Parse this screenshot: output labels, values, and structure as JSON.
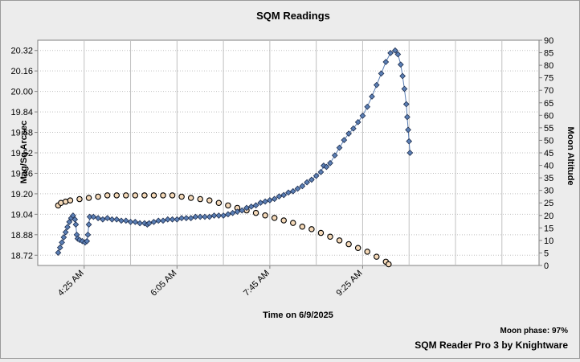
{
  "chart_data": {
    "type": "scatter",
    "title": "SQM Readings",
    "xlabel": "Time on 6/9/2025",
    "ylabel": "Mag/Sq Arcsec",
    "y2label": "Moon Altitude",
    "xlim": [
      "3:35 AM",
      "12:35 PM"
    ],
    "xticks": [
      "4:25 AM",
      "6:05 AM",
      "7:45 AM",
      "9:25 AM"
    ],
    "ylim": [
      18.64,
      20.4
    ],
    "yticks": [
      "18.72",
      "18.88",
      "19.04",
      "19.20",
      "19.36",
      "19.52",
      "19.68",
      "19.84",
      "20.00",
      "20.16",
      "20.32"
    ],
    "y2lim": [
      0,
      90
    ],
    "y2ticks": [
      "0",
      "5",
      "10",
      "15",
      "20",
      "25",
      "30",
      "35",
      "40",
      "45",
      "50",
      "55",
      "60",
      "65",
      "70",
      "75",
      "80",
      "85",
      "90"
    ],
    "grid": true,
    "series": [
      {
        "axis": "left",
        "marker": "diamond",
        "color": "#5b7fb5",
        "points": [
          [
            "3:57 AM",
            18.74
          ],
          [
            "3:59 AM",
            18.78
          ],
          [
            "4:01 AM",
            18.82
          ],
          [
            "4:03 AM",
            18.86
          ],
          [
            "4:05 AM",
            18.9
          ],
          [
            "4:07 AM",
            18.94
          ],
          [
            "4:09 AM",
            18.98
          ],
          [
            "4:11 AM",
            19.01
          ],
          [
            "4:13 AM",
            19.03
          ],
          [
            "4:15 AM",
            19.0
          ],
          [
            "4:16 AM",
            18.96
          ],
          [
            "4:17 AM",
            18.88
          ],
          [
            "4:18 AM",
            18.85
          ],
          [
            "4:20 AM",
            18.84
          ],
          [
            "4:23 AM",
            18.83
          ],
          [
            "4:26 AM",
            18.82
          ],
          [
            "4:28 AM",
            18.83
          ],
          [
            "4:29 AM",
            18.88
          ],
          [
            "4:30 AM",
            18.96
          ],
          [
            "4:31 AM",
            19.02
          ],
          [
            "4:35 AM",
            19.02
          ],
          [
            "4:40 AM",
            19.01
          ],
          [
            "4:45 AM",
            19.0
          ],
          [
            "4:50 AM",
            19.01
          ],
          [
            "4:55 AM",
            19.0
          ],
          [
            "5:00 AM",
            19.0
          ],
          [
            "5:05 AM",
            18.99
          ],
          [
            "5:10 AM",
            18.99
          ],
          [
            "5:15 AM",
            18.98
          ],
          [
            "5:20 AM",
            18.98
          ],
          [
            "5:25 AM",
            18.97
          ],
          [
            "5:30 AM",
            18.97
          ],
          [
            "5:33 AM",
            18.96
          ],
          [
            "5:35 AM",
            18.97
          ],
          [
            "5:40 AM",
            18.98
          ],
          [
            "5:45 AM",
            18.99
          ],
          [
            "5:50 AM",
            18.99
          ],
          [
            "5:55 AM",
            19.0
          ],
          [
            "6:00 AM",
            19.0
          ],
          [
            "6:05 AM",
            19.0
          ],
          [
            "6:10 AM",
            19.01
          ],
          [
            "6:15 AM",
            19.01
          ],
          [
            "6:20 AM",
            19.01
          ],
          [
            "6:25 AM",
            19.02
          ],
          [
            "6:30 AM",
            19.02
          ],
          [
            "6:35 AM",
            19.02
          ],
          [
            "6:40 AM",
            19.02
          ],
          [
            "6:45 AM",
            19.03
          ],
          [
            "6:50 AM",
            19.03
          ],
          [
            "6:55 AM",
            19.03
          ],
          [
            "7:00 AM",
            19.04
          ],
          [
            "7:05 AM",
            19.05
          ],
          [
            "7:10 AM",
            19.06
          ],
          [
            "7:15 AM",
            19.07
          ],
          [
            "7:20 AM",
            19.09
          ],
          [
            "7:25 AM",
            19.1
          ],
          [
            "7:30 AM",
            19.11
          ],
          [
            "7:35 AM",
            19.13
          ],
          [
            "7:40 AM",
            19.14
          ],
          [
            "7:45 AM",
            19.15
          ],
          [
            "7:50 AM",
            19.16
          ],
          [
            "7:55 AM",
            19.18
          ],
          [
            "8:00 AM",
            19.19
          ],
          [
            "8:05 AM",
            19.21
          ],
          [
            "8:10 AM",
            19.22
          ],
          [
            "8:15 AM",
            19.24
          ],
          [
            "8:20 AM",
            19.26
          ],
          [
            "8:25 AM",
            19.29
          ],
          [
            "8:30 AM",
            19.31
          ],
          [
            "8:35 AM",
            19.34
          ],
          [
            "8:40 AM",
            19.37
          ],
          [
            "8:43 AM",
            19.42
          ],
          [
            "8:46 AM",
            19.41
          ],
          [
            "8:50 AM",
            19.44
          ],
          [
            "8:55 AM",
            19.5
          ],
          [
            "9:00 AM",
            19.56
          ],
          [
            "9:05 AM",
            19.62
          ],
          [
            "9:10 AM",
            19.67
          ],
          [
            "9:15 AM",
            19.71
          ],
          [
            "9:20 AM",
            19.76
          ],
          [
            "9:25 AM",
            19.81
          ],
          [
            "9:30 AM",
            19.88
          ],
          [
            "9:35 AM",
            19.96
          ],
          [
            "9:40 AM",
            20.05
          ],
          [
            "9:45 AM",
            20.14
          ],
          [
            "9:50 AM",
            20.23
          ],
          [
            "9:55 AM",
            20.3
          ],
          [
            "10:00 AM",
            20.32
          ],
          [
            "10:03 AM",
            20.29
          ],
          [
            "10:06 AM",
            20.21
          ],
          [
            "10:08 AM",
            20.12
          ],
          [
            "10:10 AM",
            20.02
          ],
          [
            "10:12 AM",
            19.9
          ],
          [
            "10:13 AM",
            19.8
          ],
          [
            "10:14 AM",
            19.7
          ],
          [
            "10:15 AM",
            19.61
          ],
          [
            "10:16 AM",
            19.52
          ]
        ]
      },
      {
        "axis": "right",
        "marker": "circle",
        "color": "#f5d9b8",
        "points": [
          [
            "3:57 AM",
            24
          ],
          [
            "4:00 AM",
            25
          ],
          [
            "4:05 AM",
            25.5
          ],
          [
            "4:10 AM",
            26
          ],
          [
            "4:20 AM",
            26.5
          ],
          [
            "4:30 AM",
            27
          ],
          [
            "4:40 AM",
            27.5
          ],
          [
            "4:50 AM",
            28
          ],
          [
            "5:00 AM",
            28
          ],
          [
            "5:10 AM",
            28
          ],
          [
            "5:20 AM",
            28
          ],
          [
            "5:30 AM",
            28
          ],
          [
            "5:40 AM",
            28
          ],
          [
            "5:50 AM",
            28
          ],
          [
            "6:00 AM",
            28
          ],
          [
            "6:10 AM",
            27.5
          ],
          [
            "6:20 AM",
            27
          ],
          [
            "6:30 AM",
            26.5
          ],
          [
            "6:40 AM",
            26
          ],
          [
            "6:50 AM",
            25
          ],
          [
            "7:00 AM",
            24
          ],
          [
            "7:10 AM",
            23
          ],
          [
            "7:20 AM",
            22
          ],
          [
            "7:30 AM",
            21
          ],
          [
            "7:40 AM",
            20
          ],
          [
            "7:50 AM",
            19
          ],
          [
            "8:00 AM",
            18
          ],
          [
            "8:10 AM",
            17
          ],
          [
            "8:20 AM",
            15.5
          ],
          [
            "8:30 AM",
            14.5
          ],
          [
            "8:40 AM",
            13
          ],
          [
            "8:50 AM",
            11.5
          ],
          [
            "9:00 AM",
            10
          ],
          [
            "9:10 AM",
            8.5
          ],
          [
            "9:20 AM",
            7
          ],
          [
            "9:30 AM",
            5.5
          ],
          [
            "9:40 AM",
            3.5
          ],
          [
            "9:50 AM",
            1.5
          ],
          [
            "9:53 AM",
            0.5
          ]
        ]
      }
    ]
  },
  "footer": {
    "moon_phase": "Moon phase: 97%",
    "credit": "SQM Reader Pro 3 by Knightware"
  }
}
